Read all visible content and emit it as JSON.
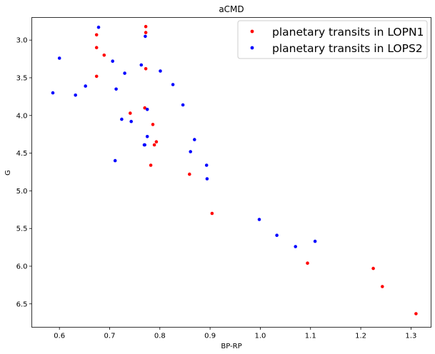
{
  "chart_data": {
    "type": "scatter",
    "title": "aCMD",
    "xlabel": "BP-RP",
    "ylabel": "G",
    "xlim": [
      0.545,
      1.34
    ],
    "ylim": [
      6.81,
      2.7
    ],
    "y_inverted": true,
    "grid": false,
    "legend_position": "top-right",
    "x_ticks": [
      0.6,
      0.7,
      0.8,
      0.9,
      1.0,
      1.1,
      1.2,
      1.3
    ],
    "x_tick_labels": [
      "0.6",
      "0.7",
      "0.8",
      "0.9",
      "1.0",
      "1.1",
      "1.2",
      "1.3"
    ],
    "y_ticks": [
      3.0,
      3.5,
      4.0,
      4.5,
      5.0,
      5.5,
      6.0,
      6.5
    ],
    "y_tick_labels": [
      "3.0",
      "3.5",
      "4.0",
      "4.5",
      "5.0",
      "5.5",
      "6.0",
      "6.5"
    ],
    "series": [
      {
        "name": "planetary transits in LOPN1",
        "color": "#ff0000",
        "points": [
          {
            "x": 0.674,
            "y": 2.93
          },
          {
            "x": 0.674,
            "y": 3.1
          },
          {
            "x": 0.689,
            "y": 3.2
          },
          {
            "x": 0.674,
            "y": 3.48
          },
          {
            "x": 0.772,
            "y": 2.82
          },
          {
            "x": 0.772,
            "y": 2.9
          },
          {
            "x": 0.772,
            "y": 3.38
          },
          {
            "x": 0.77,
            "y": 3.9
          },
          {
            "x": 0.741,
            "y": 3.97
          },
          {
            "x": 0.786,
            "y": 4.12
          },
          {
            "x": 0.793,
            "y": 4.35
          },
          {
            "x": 0.789,
            "y": 4.39
          },
          {
            "x": 0.782,
            "y": 4.66
          },
          {
            "x": 0.859,
            "y": 4.78
          },
          {
            "x": 0.904,
            "y": 5.3
          },
          {
            "x": 1.094,
            "y": 5.96
          },
          {
            "x": 1.225,
            "y": 6.03
          },
          {
            "x": 1.243,
            "y": 6.27
          },
          {
            "x": 1.31,
            "y": 6.63
          }
        ]
      },
      {
        "name": "planetary transits in LOPS2",
        "color": "#0000ff",
        "points": [
          {
            "x": 0.678,
            "y": 2.83
          },
          {
            "x": 0.771,
            "y": 2.95
          },
          {
            "x": 0.6,
            "y": 3.24
          },
          {
            "x": 0.706,
            "y": 3.28
          },
          {
            "x": 0.763,
            "y": 3.33
          },
          {
            "x": 0.801,
            "y": 3.41
          },
          {
            "x": 0.73,
            "y": 3.44
          },
          {
            "x": 0.826,
            "y": 3.59
          },
          {
            "x": 0.652,
            "y": 3.61
          },
          {
            "x": 0.713,
            "y": 3.65
          },
          {
            "x": 0.587,
            "y": 3.7
          },
          {
            "x": 0.632,
            "y": 3.73
          },
          {
            "x": 0.846,
            "y": 3.86
          },
          {
            "x": 0.775,
            "y": 3.92
          },
          {
            "x": 0.724,
            "y": 4.05
          },
          {
            "x": 0.743,
            "y": 4.08
          },
          {
            "x": 0.775,
            "y": 4.28
          },
          {
            "x": 0.869,
            "y": 4.32
          },
          {
            "x": 0.769,
            "y": 4.39
          },
          {
            "x": 0.77,
            "y": 4.39
          },
          {
            "x": 0.861,
            "y": 4.48
          },
          {
            "x": 0.711,
            "y": 4.6
          },
          {
            "x": 0.893,
            "y": 4.66
          },
          {
            "x": 0.894,
            "y": 4.84
          },
          {
            "x": 0.998,
            "y": 5.38
          },
          {
            "x": 1.033,
            "y": 5.59
          },
          {
            "x": 1.07,
            "y": 5.74
          },
          {
            "x": 1.109,
            "y": 5.67
          }
        ]
      }
    ]
  }
}
